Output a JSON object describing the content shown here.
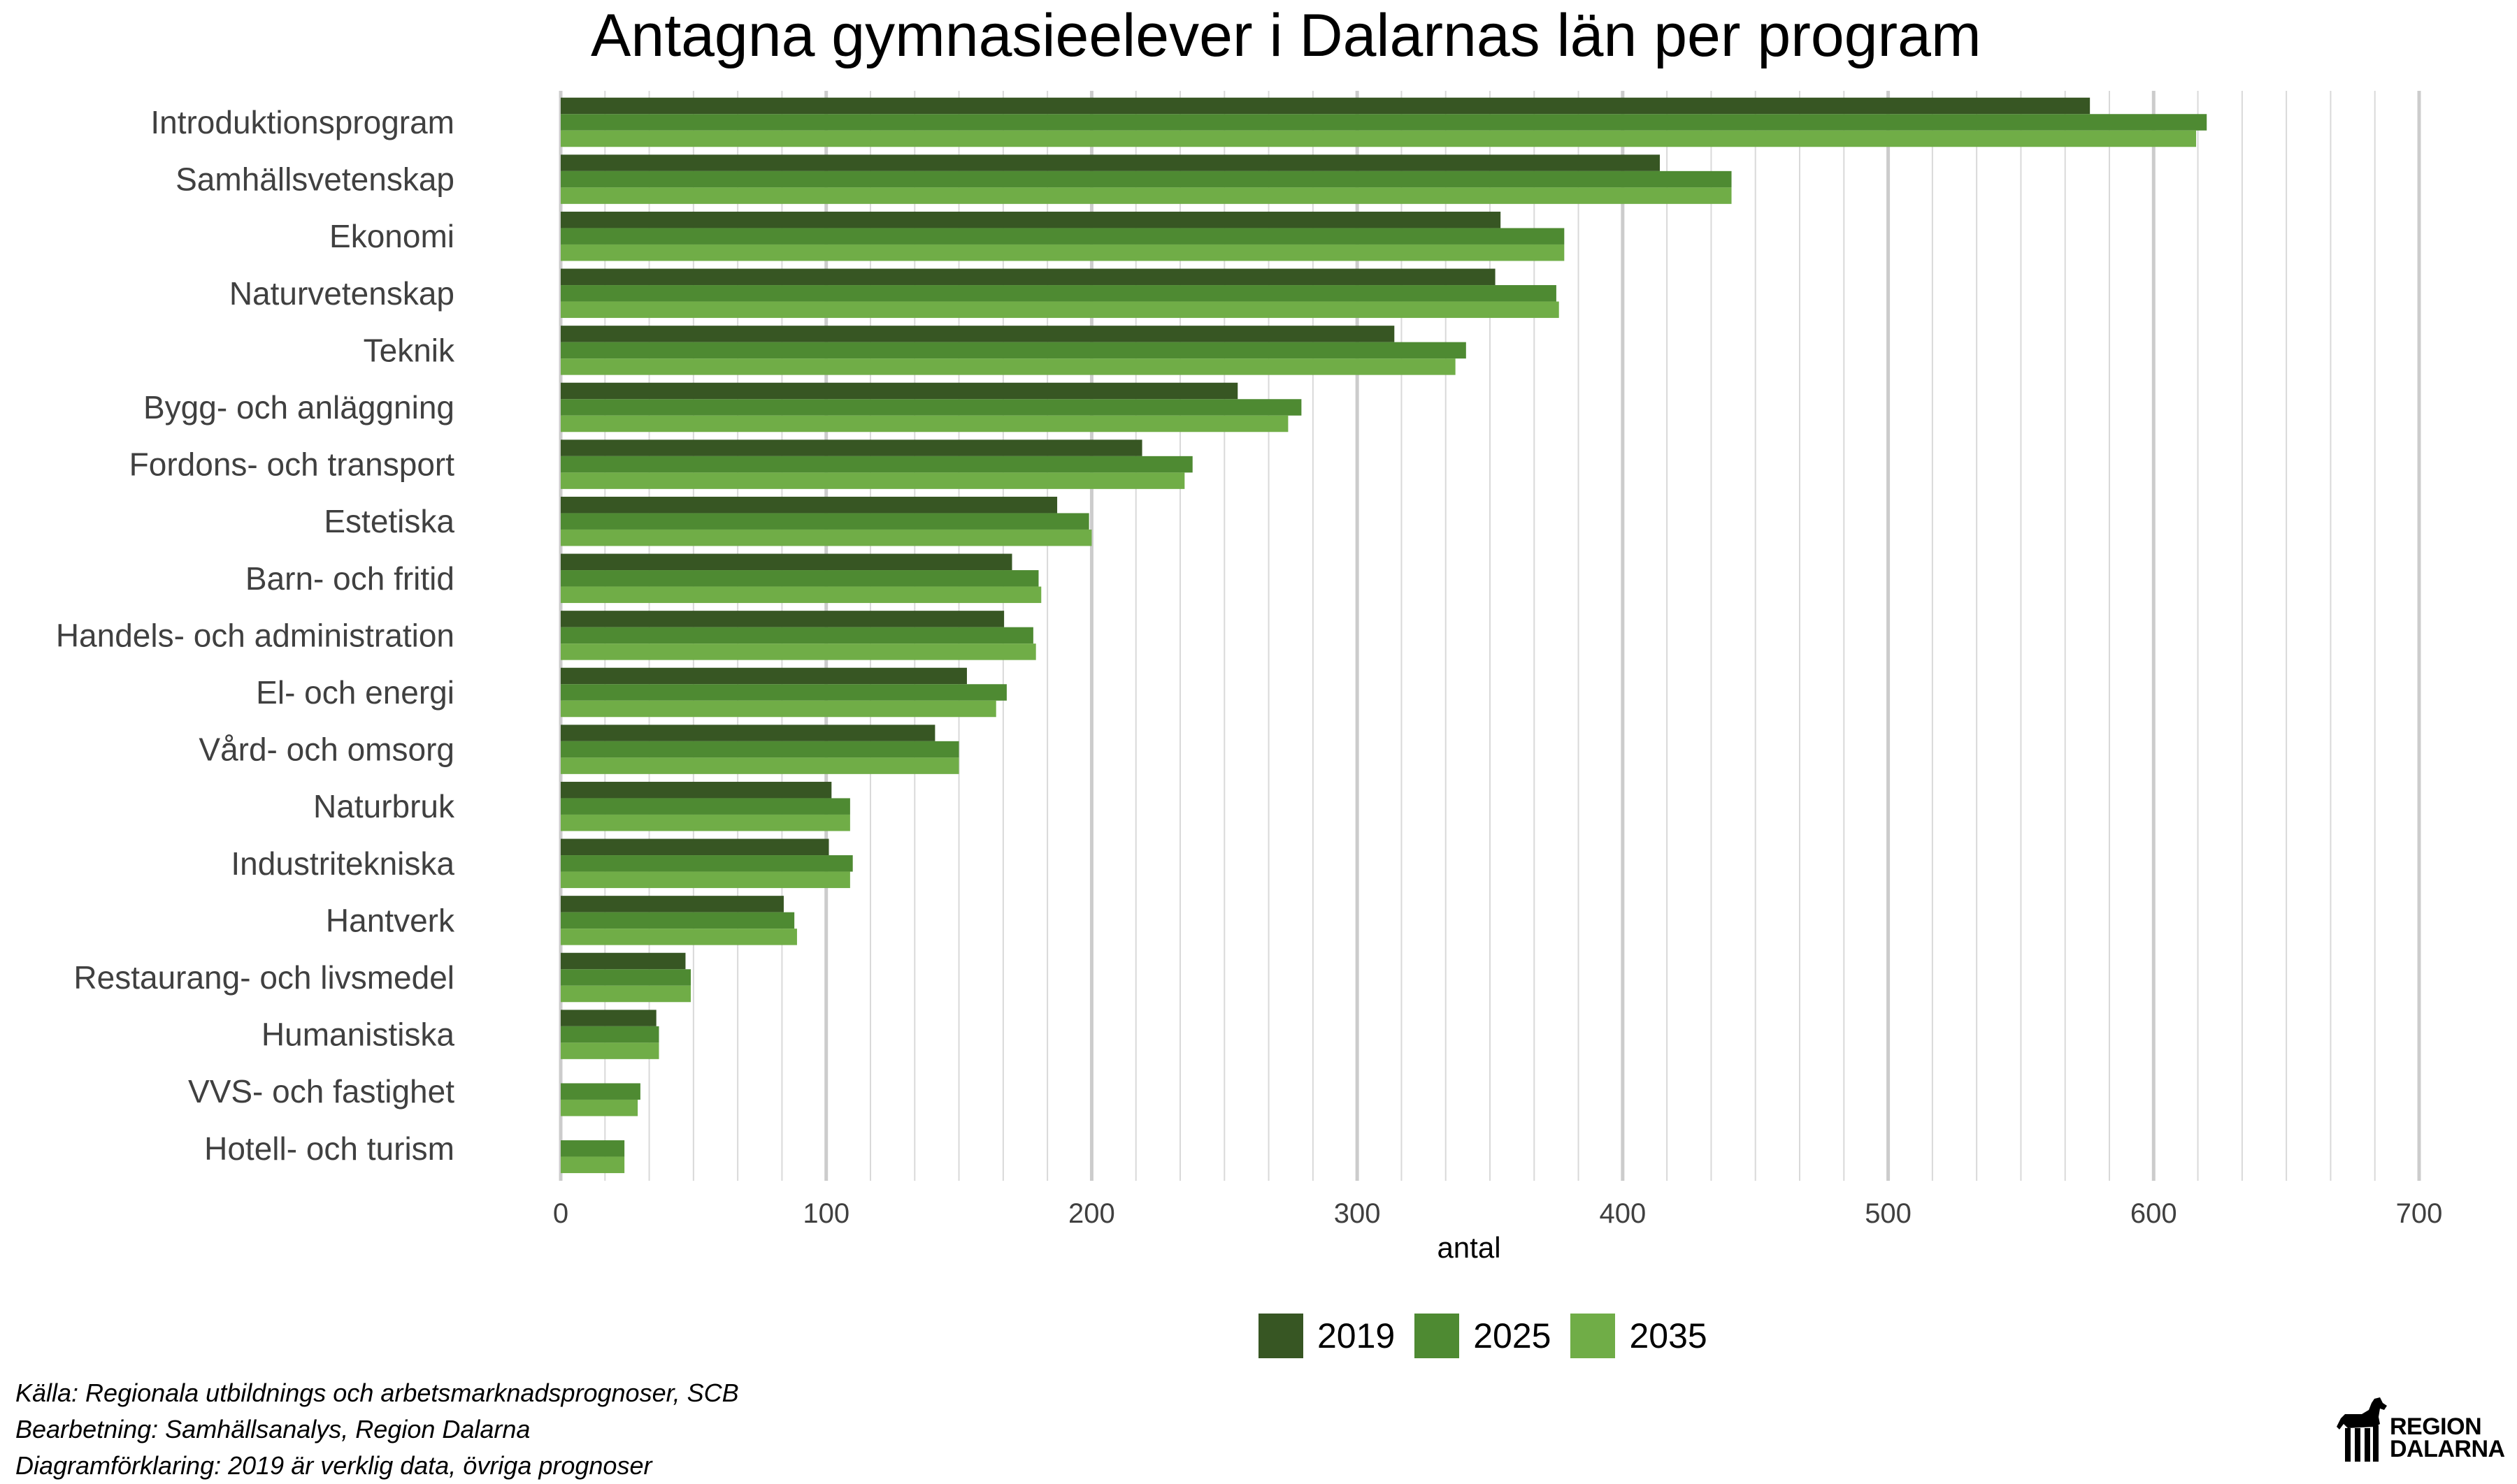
{
  "chart_data": {
    "type": "bar",
    "orientation": "horizontal",
    "title": "Antagna gymnasieelever i Dalarnas län per program",
    "xlabel": "antal",
    "ylabel": "",
    "xlim": [
      0,
      700
    ],
    "xticks": [
      0,
      100,
      200,
      300,
      400,
      500,
      600,
      700
    ],
    "grid": true,
    "legend_position": "bottom",
    "categories": [
      "Introduktionsprogram",
      "Samhällsvetenskap",
      "Ekonomi",
      "Naturvetenskap",
      "Teknik",
      "Bygg- och anläggning",
      "Fordons- och transport",
      "Estetiska",
      "Barn- och fritid",
      "Handels- och administration",
      "El- och energi",
      "Vård- och omsorg",
      "Naturbruk",
      "Industritekniska",
      "Hantverk",
      "Restaurang- och livsmedel",
      "Humanistiska",
      "VVS- och fastighet",
      "Hotell- och turism"
    ],
    "series": [
      {
        "name": "2019",
        "color": "#375623",
        "values": [
          576,
          414,
          354,
          352,
          314,
          255,
          219,
          187,
          170,
          167,
          153,
          141,
          102,
          101,
          84,
          47,
          36,
          0,
          0
        ]
      },
      {
        "name": "2025",
        "color": "#4e8a32",
        "values": [
          620,
          441,
          378,
          375,
          341,
          279,
          238,
          199,
          180,
          178,
          168,
          150,
          109,
          110,
          88,
          49,
          37,
          30,
          24
        ]
      },
      {
        "name": "2035",
        "color": "#70ad47",
        "values": [
          616,
          441,
          378,
          376,
          337,
          274,
          235,
          200,
          181,
          179,
          164,
          150,
          109,
          109,
          89,
          49,
          37,
          29,
          24
        ]
      }
    ]
  },
  "footer": {
    "source_lines": [
      "Källa: Regionala utbildnings och arbetsmarknadsprognoser, SCB",
      "Bearbetning: Samhällsanalys, Region Dalarna",
      "Diagramförklaring: 2019 är verklig data, övriga prognoser"
    ]
  },
  "logo": {
    "line1": "REGION",
    "line2": "DALARNA"
  }
}
